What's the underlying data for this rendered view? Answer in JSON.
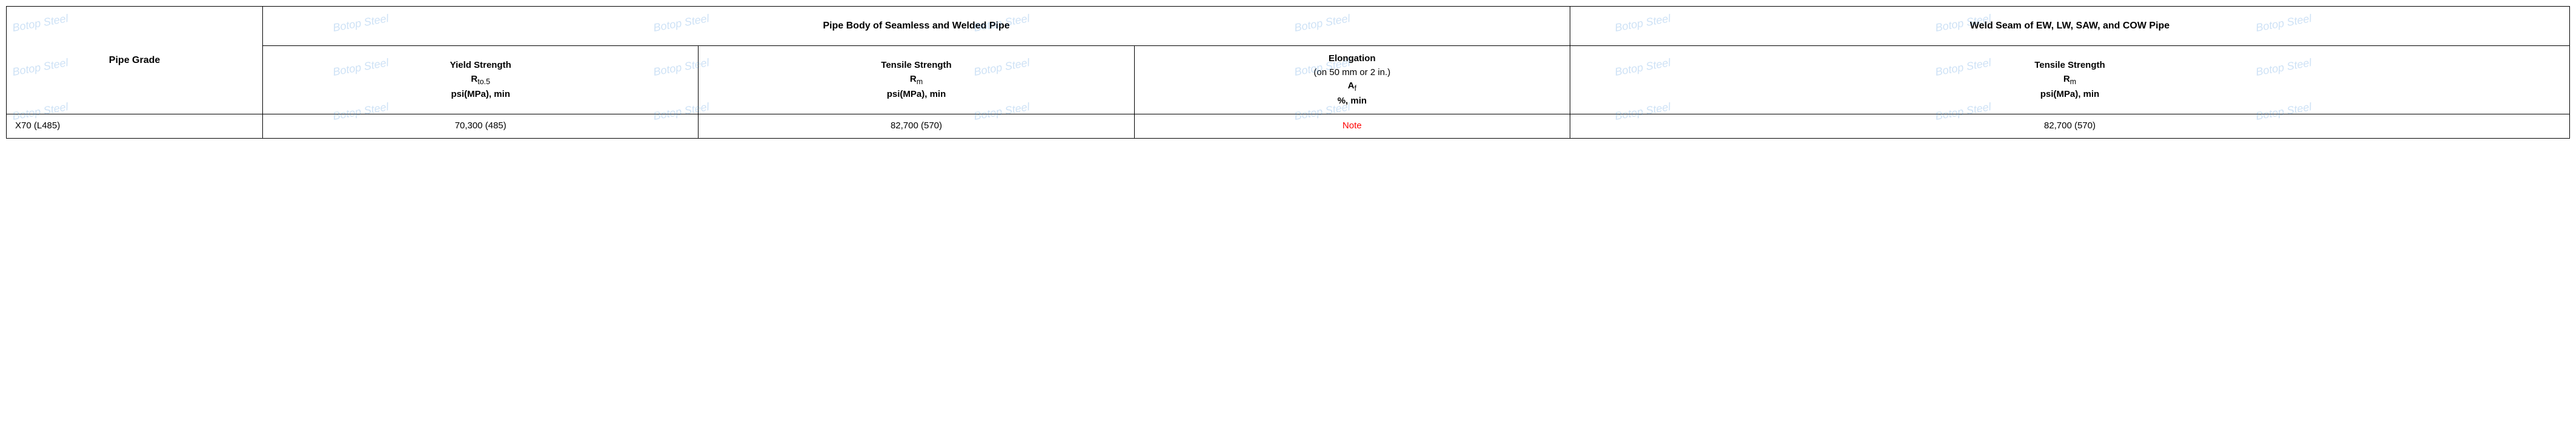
{
  "watermark_text": "Botop Steel",
  "table": {
    "header": {
      "pipe_grade": "Pipe Grade",
      "body_group": "Pipe Body of Seamless and Welded Pipe",
      "weld_group": "Weld Seam of EW, LW, SAW, and COW Pipe",
      "yield_strength_l1": "Yield Strength",
      "yield_strength_l2": "R",
      "yield_strength_sub": "to.5",
      "yield_strength_l3": "psi(MPa), min",
      "tensile_strength_l1": "Tensile Strength",
      "tensile_strength_l2": "R",
      "tensile_strength_sub": "m",
      "tensile_strength_l3": "psi(MPa), min",
      "elongation_l1": "Elongation",
      "elongation_l2": "(on 50 mm or 2 in.)",
      "elongation_l3": "A",
      "elongation_sub": "f",
      "elongation_l4": "%, min",
      "weld_ts_l1": "Tensile Strength",
      "weld_ts_l2": "R",
      "weld_ts_sub": "m",
      "weld_ts_l3": "psi(MPa), min"
    },
    "row": {
      "grade": "X70 (L485)",
      "yield": "70,300 (485)",
      "tensile": "82,700 (570)",
      "elong": "Note",
      "weld_tensile": "82,700 (570)"
    }
  },
  "colors": {
    "note": "#ff0000",
    "border": "#000000",
    "watermark": "rgba(60,140,220,0.25)"
  }
}
